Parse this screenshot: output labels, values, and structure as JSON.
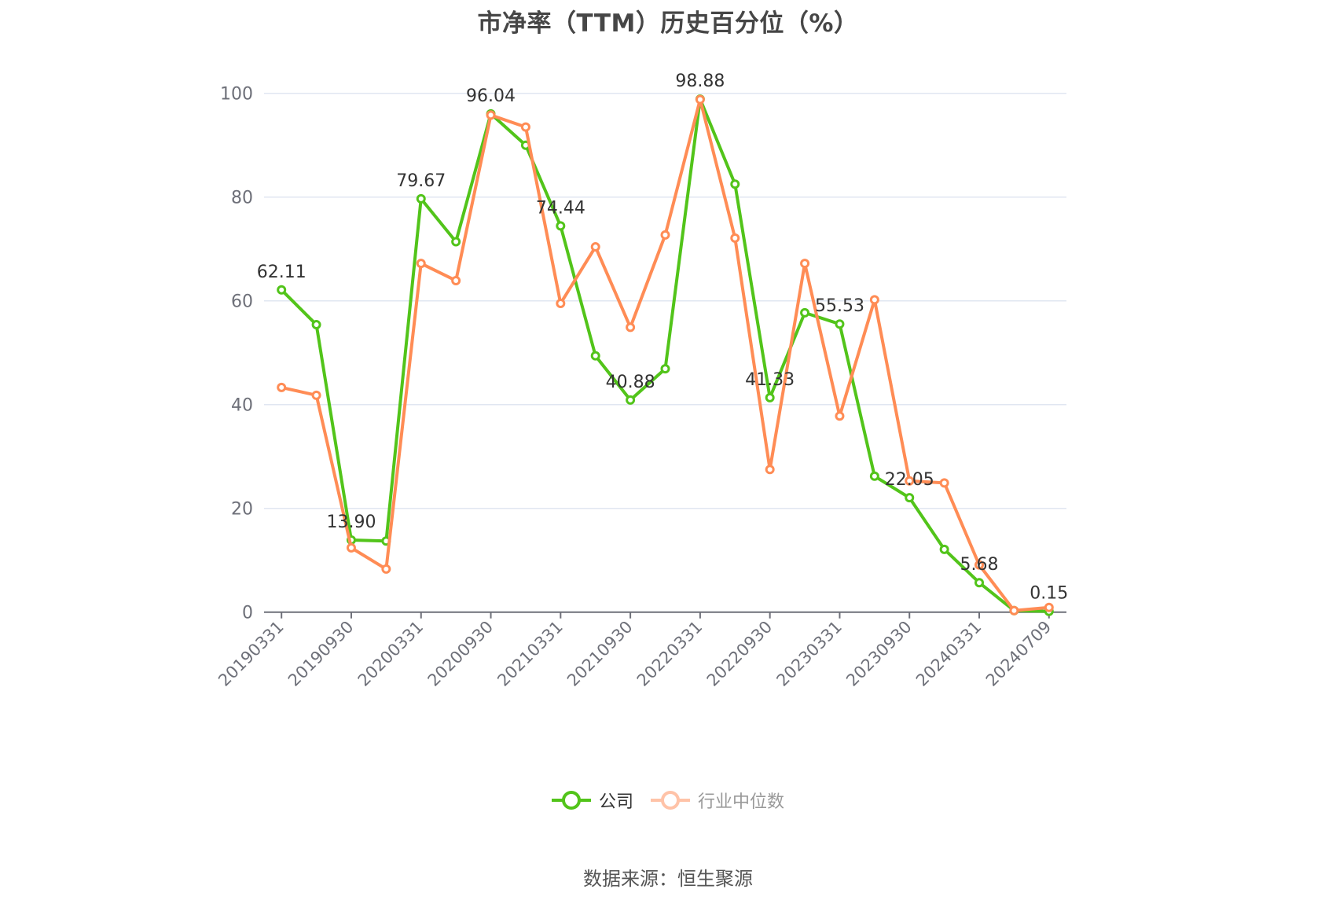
{
  "title": "市净率（TTM）历史百分位（%）",
  "legend": [
    {
      "name": "公司",
      "color": "#52c41a",
      "text_color": "#333333",
      "active": true
    },
    {
      "name": "行业中位数",
      "color": "#ff8c55",
      "text_color": "#999999",
      "active": false
    }
  ],
  "footer": "数据来源：恒生聚源",
  "chart_data": {
    "type": "line",
    "title": "市净率（TTM）历史百分位（%）",
    "xlabel": "",
    "ylabel": "",
    "ylim": [
      0,
      100
    ],
    "yticks": [
      0,
      20,
      40,
      60,
      80,
      100
    ],
    "grid": true,
    "legend_position": "bottom",
    "x": [
      "20190331",
      "20190630",
      "20190930",
      "20191231",
      "20200331",
      "20200630",
      "20200930",
      "20201231",
      "20210331",
      "20210630",
      "20210930",
      "20211231",
      "20220331",
      "20220630",
      "20220930",
      "20221231",
      "20230331",
      "20230630",
      "20230930",
      "20231231",
      "20240331",
      "20240630",
      "20240709"
    ],
    "xtick_labels": [
      "20190331",
      "20190930",
      "20200331",
      "20200930",
      "20210331",
      "20210930",
      "20220331",
      "20220930",
      "20230331",
      "20230930",
      "20240331",
      "20240709"
    ],
    "series": [
      {
        "name": "公司",
        "color": "#52c41a",
        "values": [
          62.11,
          55.4,
          13.9,
          13.7,
          79.67,
          71.4,
          96.04,
          90.0,
          74.44,
          49.4,
          40.88,
          46.9,
          98.88,
          82.5,
          41.33,
          57.7,
          55.53,
          26.2,
          22.05,
          12.1,
          5.68,
          0.3,
          0.15
        ],
        "data_labels": {
          "0": "62.11",
          "2": "13.90",
          "4": "79.67",
          "6": "96.04",
          "8": "74.44",
          "10": "40.88",
          "12": "98.88",
          "14": "41.33",
          "16": "55.53",
          "18": "22.05",
          "20": "5.68",
          "22": "0.15"
        }
      },
      {
        "name": "行业中位数",
        "color": "#ff8c55",
        "values": [
          43.3,
          41.8,
          12.4,
          8.3,
          67.2,
          63.9,
          95.8,
          93.5,
          59.5,
          70.4,
          54.9,
          72.7,
          98.8,
          72.1,
          27.5,
          67.2,
          37.8,
          60.2,
          25.3,
          24.9,
          9.1,
          0.3,
          0.9
        ]
      }
    ]
  }
}
